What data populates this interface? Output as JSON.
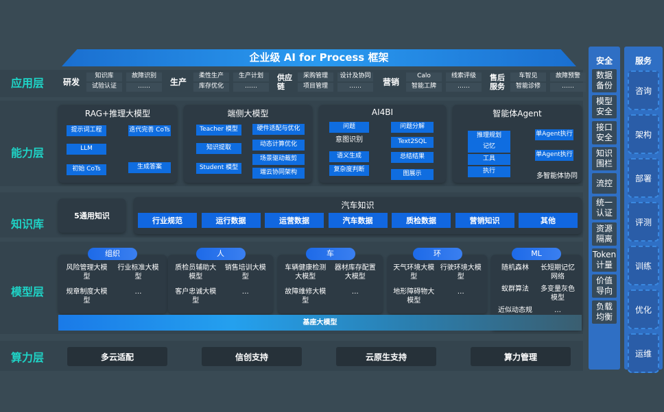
{
  "title": "企业级 AI for Process 框架",
  "layers": {
    "app": "应用层",
    "capability": "能力层",
    "knowledge": "知识库",
    "model": "模型层",
    "compute": "算力层"
  },
  "app_groups": [
    {
      "name": "研发",
      "items": [
        "知识库",
        "故障识别",
        "试验认证",
        "……"
      ]
    },
    {
      "name": "生产",
      "items": [
        "柔性生产",
        "生产计划",
        "库存优化",
        "……"
      ]
    },
    {
      "name": "供应链",
      "items": [
        "采购管理",
        "设计及协同",
        "项目管理",
        "……"
      ]
    },
    {
      "name": "营销",
      "items": [
        "Calo",
        "线索评级",
        "智能工牌",
        "……"
      ]
    },
    {
      "name": "售后服务",
      "items": [
        "车智见",
        "故障预警",
        "智能诊修",
        "……"
      ]
    }
  ],
  "capability": {
    "rag": {
      "title": "RAG+推理大模型",
      "left": [
        "提示词工程",
        "LLM",
        "初始 CoTs"
      ],
      "right": [
        "迭代完善 CoTs",
        "生成答案"
      ]
    },
    "edge": {
      "title": "端侧大模型",
      "left": [
        "Teacher 模型",
        "知识提取",
        "Student 模型"
      ],
      "right": [
        "硬件适配与优化",
        "动态计算优化",
        "场景驱动裁剪",
        "端云协同架构"
      ]
    },
    "ai4bi": {
      "title": "AI4BI",
      "left": [
        "问题",
        "意图识别",
        "语义生成",
        "复杂度判断"
      ],
      "right": [
        "问题分解",
        "Text2SQL",
        "总结结果",
        "图展示"
      ]
    },
    "agent": {
      "title": "智能体Agent",
      "left": [
        "推理规划",
        "记忆",
        "工具",
        "执行"
      ],
      "right": [
        "单Agent执行",
        "单Agent执行"
      ],
      "caption": "多智能体协同"
    }
  },
  "knowledge": {
    "general": "5通用知识",
    "auto_title": "汽车知识",
    "auto_items": [
      "行业规范",
      "运行数据",
      "运营数据",
      "汽车数据",
      "质检数据",
      "营销知识",
      "其他"
    ]
  },
  "model_groups": [
    {
      "name": "组织",
      "items": [
        "风险管理大模型",
        "行业标准大模型",
        "规章制度大模型",
        "…"
      ]
    },
    {
      "name": "人",
      "items": [
        "质检员辅助大模型",
        "销售培训大模型",
        "客户忠诚大模型",
        "…"
      ]
    },
    {
      "name": "车",
      "items": [
        "车辆健康检测大模型",
        "器材库存配置大模型",
        "故障维修大模型",
        "…"
      ]
    },
    {
      "name": "环",
      "items": [
        "天气环境大模型",
        "行驶环境大模型",
        "地形障碍物大模型",
        "…"
      ]
    },
    {
      "name": "ML",
      "items": [
        "随机森林",
        "长短期记忆网络",
        "蚁群算法",
        "多变量灰色模型",
        "近似动态规划",
        "…"
      ]
    }
  ],
  "base_model": "基座大模型",
  "compute": [
    "多云适配",
    "信创支持",
    "云原生支持",
    "算力管理"
  ],
  "security": {
    "title": "安全",
    "items": [
      "数据备份",
      "模型安全",
      "接口安全",
      "知识围栏",
      "流控",
      "统一认证",
      "资源隔离",
      "Token计量",
      "价值导向",
      "负载均衡"
    ]
  },
  "services": {
    "title": "服务",
    "items": [
      "咨询",
      "架构",
      "部署",
      "评测",
      "训练",
      "优化",
      "运维"
    ]
  },
  "colors": {
    "background": "#394a54",
    "accent": "#1fd3c6",
    "blue": "#0f6de0"
  }
}
